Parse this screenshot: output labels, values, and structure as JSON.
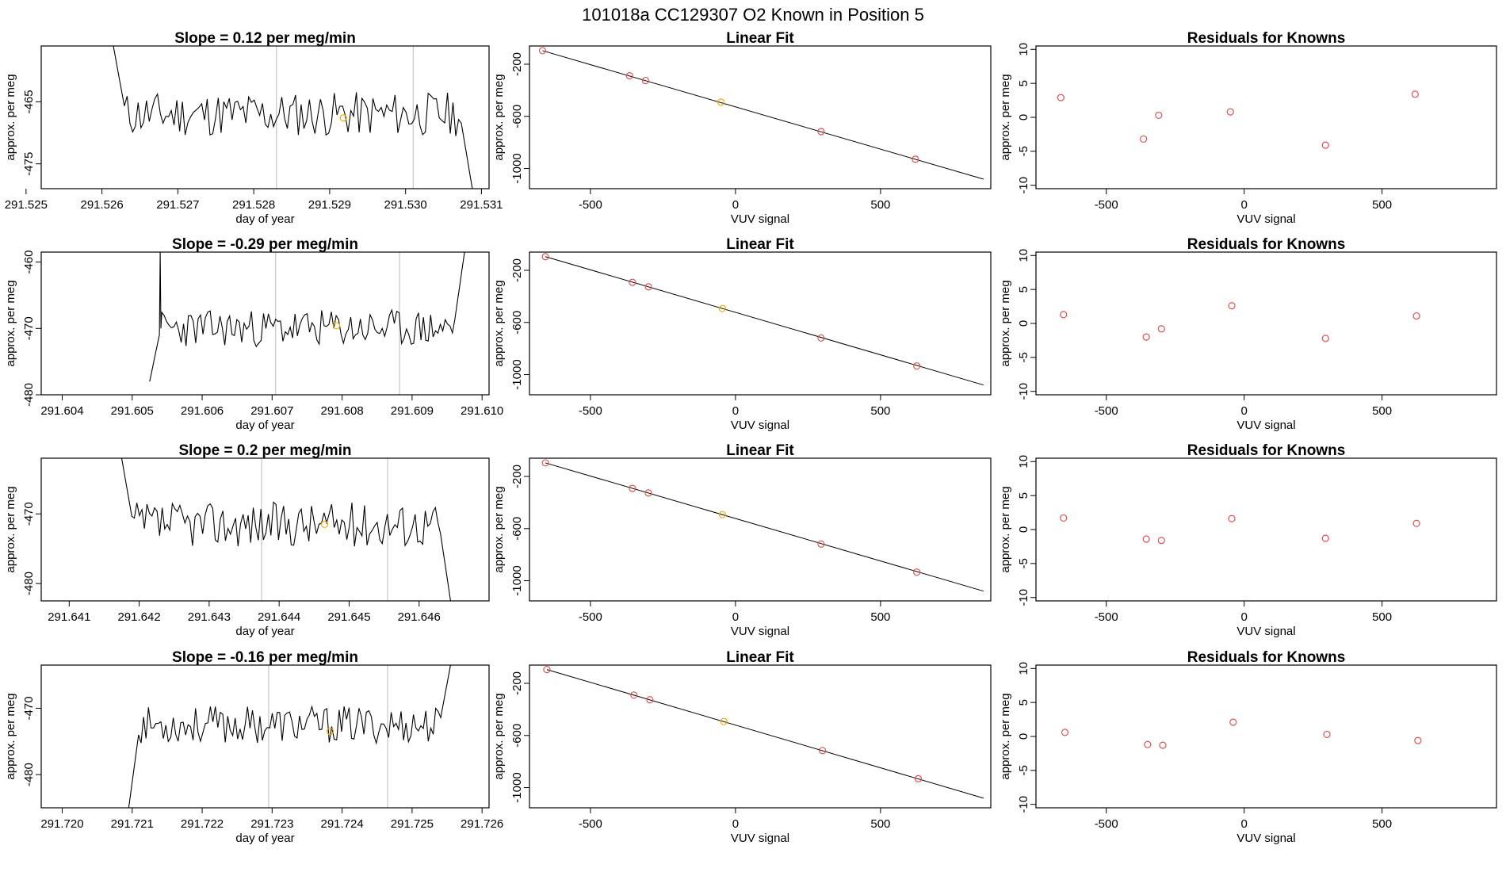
{
  "figure": {
    "title": "101018a      CC129307   O2 Known in Position  5"
  },
  "colors": {
    "line": "#000000",
    "vline": "#bbbbbb",
    "known_point": "#e05050",
    "highlight_point": "#f2a900"
  },
  "chart_data": [
    {
      "type": "line",
      "title": "Slope =  0.12  per meg/min",
      "xlabel": "day of year",
      "ylabel": "approx. per meg",
      "xlim": [
        291.5252,
        291.5311
      ],
      "ylim": [
        -479.0,
        -456.0
      ],
      "xticks": [
        291.525,
        291.526,
        291.527,
        291.528,
        291.529,
        291.53,
        291.531
      ],
      "xtick_labels": [
        "291.525",
        "291.526",
        "291.527",
        "291.528",
        "291.529",
        "291.530",
        "291.531"
      ],
      "yticks": [
        -465,
        -475
      ],
      "ytick_labels": [
        "-465",
        "-475"
      ],
      "series_start": 291.52615,
      "series_end": 291.53088,
      "series_center": -467.0,
      "series_amplitude": 3.6,
      "start_value": -456.0,
      "end_value": -479.0,
      "seed": 11,
      "vlines": [
        291.5283,
        291.5301
      ],
      "highlight": {
        "x": 291.52918,
        "y": -467.6
      }
    },
    {
      "type": "scatter",
      "title": "Linear Fit",
      "xlabel": "VUV signal",
      "ylabel": "approx. per meg",
      "xlim": [
        -710,
        880
      ],
      "ylim": [
        -1155,
        -60
      ],
      "xticks": [
        -500,
        0,
        500
      ],
      "xtick_labels": [
        "-500",
        "0",
        "500"
      ],
      "yticks": [
        -200,
        -600,
        -1000
      ],
      "ytick_labels": [
        "-200",
        "-600",
        "-1000"
      ],
      "fit_x": [
        -665,
        855
      ],
      "fit_y": [
        -96,
        -1082
      ],
      "points_x": [
        -665,
        -365,
        -310,
        -50,
        295,
        620
      ],
      "points_y": [
        -96,
        -289,
        -325,
        -491,
        -717,
        -929
      ],
      "highlight_index": 3
    },
    {
      "type": "scatter",
      "title": "Residuals for Knowns",
      "xlabel": "VUV signal",
      "ylabel": "approx. per meg",
      "xlim": [
        -755,
        915
      ],
      "ylim": [
        -10.5,
        10.5
      ],
      "xticks": [
        -500,
        0,
        500
      ],
      "xtick_labels": [
        "-500",
        "0",
        "500"
      ],
      "yticks": [
        10,
        5,
        0,
        -5,
        -10
      ],
      "ytick_labels": [
        "10",
        "5",
        "0",
        "-5",
        "-10"
      ],
      "points_x": [
        -665,
        -365,
        -310,
        -50,
        295,
        620
      ],
      "points_y": [
        2.9,
        -3.2,
        0.3,
        0.8,
        -4.1,
        3.4
      ]
    },
    {
      "type": "line",
      "title": "Slope =  -0.29  per meg/min",
      "xlabel": "day of year",
      "ylabel": "approx. per meg",
      "xlim": [
        291.6037,
        291.6101
      ],
      "ylim": [
        -480.0,
        -458.5
      ],
      "xticks": [
        291.604,
        291.605,
        291.606,
        291.607,
        291.608,
        291.609,
        291.61
      ],
      "xtick_labels": [
        "291.604",
        "291.605",
        "291.606",
        "291.607",
        "291.608",
        "291.609",
        "291.610"
      ],
      "yticks": [
        -460,
        -470,
        -480
      ],
      "ytick_labels": [
        "-460",
        "-470",
        "-480"
      ],
      "series_start": 291.60525,
      "series_end": 291.60975,
      "series_center": -470.0,
      "series_amplitude": 2.8,
      "start_value": -478.0,
      "end_value": -458.5,
      "seed": 23,
      "spike": {
        "x": 291.6054,
        "y": -458.5
      },
      "vlines": [
        291.60705,
        291.60882
      ],
      "highlight": {
        "x": 291.60792,
        "y": -469.6
      }
    },
    {
      "type": "scatter",
      "title": "Linear Fit",
      "xlabel": "VUV signal",
      "ylabel": "approx. per meg",
      "xlim": [
        -710,
        880
      ],
      "ylim": [
        -1155,
        -60
      ],
      "xticks": [
        -500,
        0,
        500
      ],
      "xtick_labels": [
        "-500",
        "0",
        "500"
      ],
      "yticks": [
        -200,
        -600,
        -1000
      ],
      "ytick_labels": [
        "-200",
        "-600",
        "-1000"
      ],
      "fit_x": [
        -655,
        855
      ],
      "fit_y": [
        -95,
        -1080
      ],
      "points_x": [
        -655,
        -355,
        -300,
        -45,
        295,
        625
      ],
      "points_y": [
        -95,
        -292,
        -327,
        -493,
        -719,
        -934
      ],
      "highlight_index": 3
    },
    {
      "type": "scatter",
      "title": "Residuals for Knowns",
      "xlabel": "VUV signal",
      "ylabel": "approx. per meg",
      "xlim": [
        -755,
        915
      ],
      "ylim": [
        -10.5,
        10.5
      ],
      "xticks": [
        -500,
        0,
        500
      ],
      "xtick_labels": [
        "-500",
        "0",
        "500"
      ],
      "yticks": [
        10,
        5,
        0,
        -5,
        -10
      ],
      "ytick_labels": [
        "10",
        "5",
        "0",
        "-5",
        "-10"
      ],
      "points_x": [
        -655,
        -355,
        -300,
        -45,
        295,
        625
      ],
      "points_y": [
        1.3,
        -2.0,
        -0.8,
        2.6,
        -2.2,
        1.1
      ]
    },
    {
      "type": "line",
      "title": "Slope =  0.2  per meg/min",
      "xlabel": "day of year",
      "ylabel": "approx. per meg",
      "xlim": [
        291.6406,
        291.647
      ],
      "ylim": [
        -482.5,
        -462.0
      ],
      "xticks": [
        291.641,
        291.642,
        291.643,
        291.644,
        291.645,
        291.646
      ],
      "xtick_labels": [
        "291.641",
        "291.642",
        "291.643",
        "291.644",
        "291.645",
        "291.646"
      ],
      "yticks": [
        -470,
        -480
      ],
      "ytick_labels": [
        "-470",
        "-480"
      ],
      "series_start": 291.64175,
      "series_end": 291.64645,
      "series_center": -471.5,
      "series_amplitude": 3.2,
      "start_value": -462.0,
      "end_value": -482.5,
      "seed": 37,
      "vlines": [
        291.64375,
        291.64555
      ],
      "highlight": {
        "x": 291.64465,
        "y": -471.5
      }
    },
    {
      "type": "scatter",
      "title": "Linear Fit",
      "xlabel": "VUV signal",
      "ylabel": "approx. per meg",
      "xlim": [
        -710,
        880
      ],
      "ylim": [
        -1155,
        -60
      ],
      "xticks": [
        -500,
        0,
        500
      ],
      "xtick_labels": [
        "-500",
        "0",
        "500"
      ],
      "yticks": [
        -200,
        -600,
        -1000
      ],
      "ytick_labels": [
        "-200",
        "-600",
        "-1000"
      ],
      "fit_x": [
        -655,
        855
      ],
      "fit_y": [
        -96,
        -1080
      ],
      "points_x": [
        -655,
        -355,
        -300,
        -45,
        295,
        625
      ],
      "points_y": [
        -96,
        -292,
        -327,
        -493,
        -719,
        -934
      ],
      "highlight_index": 3
    },
    {
      "type": "scatter",
      "title": "Residuals for Knowns",
      "xlabel": "VUV signal",
      "ylabel": "approx. per meg",
      "xlim": [
        -755,
        915
      ],
      "ylim": [
        -10.5,
        10.5
      ],
      "xticks": [
        -500,
        0,
        500
      ],
      "xtick_labels": [
        "-500",
        "0",
        "500"
      ],
      "yticks": [
        10,
        5,
        0,
        -5,
        -10
      ],
      "ytick_labels": [
        "10",
        "5",
        "0",
        "-5",
        "-10"
      ],
      "points_x": [
        -655,
        -355,
        -300,
        -45,
        295,
        625
      ],
      "points_y": [
        1.7,
        -1.4,
        -1.6,
        1.6,
        -1.3,
        0.9
      ]
    },
    {
      "type": "line",
      "title": "Slope =  -0.16  per meg/min",
      "xlabel": "day of year",
      "ylabel": "approx. per meg",
      "xlim": [
        291.7197,
        291.7261
      ],
      "ylim": [
        -485.0,
        -463.5
      ],
      "xticks": [
        291.72,
        291.721,
        291.722,
        291.723,
        291.724,
        291.725,
        291.726
      ],
      "xtick_labels": [
        "291.720",
        "291.721",
        "291.722",
        "291.723",
        "291.724",
        "291.725",
        "291.726"
      ],
      "yticks": [
        -470,
        -480
      ],
      "ytick_labels": [
        "-470",
        "-480"
      ],
      "series_start": 291.72095,
      "series_end": 291.72555,
      "series_center": -472.5,
      "series_amplitude": 2.8,
      "start_value": -485.0,
      "end_value": -463.5,
      "seed": 53,
      "vlines": [
        291.72295,
        291.72465
      ],
      "highlight": {
        "x": 291.72383,
        "y": -473.5
      }
    },
    {
      "type": "scatter",
      "title": "Linear Fit",
      "xlabel": "VUV signal",
      "ylabel": "approx. per meg",
      "xlim": [
        -710,
        880
      ],
      "ylim": [
        -1155,
        -60
      ],
      "xticks": [
        -500,
        0,
        500
      ],
      "xtick_labels": [
        "-500",
        "0",
        "500"
      ],
      "yticks": [
        -200,
        -600,
        -1000
      ],
      "ytick_labels": [
        "-200",
        "-600",
        "-1000"
      ],
      "fit_x": [
        -650,
        855
      ],
      "fit_y": [
        -94,
        -1081
      ],
      "points_x": [
        -650,
        -350,
        -295,
        -40,
        300,
        630
      ],
      "points_y": [
        -94,
        -290,
        -326,
        -493,
        -716,
        -932
      ],
      "highlight_index": 3
    },
    {
      "type": "scatter",
      "title": "Residuals for Knowns",
      "xlabel": "VUV signal",
      "ylabel": "approx. per meg",
      "xlim": [
        -755,
        915
      ],
      "ylim": [
        -10.5,
        10.5
      ],
      "xticks": [
        -500,
        0,
        500
      ],
      "xtick_labels": [
        "-500",
        "0",
        "500"
      ],
      "yticks": [
        10,
        5,
        0,
        -5,
        -10
      ],
      "ytick_labels": [
        "10",
        "5",
        "0",
        "-5",
        "-10"
      ],
      "points_x": [
        -650,
        -350,
        -295,
        -40,
        300,
        630
      ],
      "points_y": [
        0.6,
        -1.2,
        -1.3,
        2.1,
        0.3,
        -0.6
      ]
    }
  ]
}
